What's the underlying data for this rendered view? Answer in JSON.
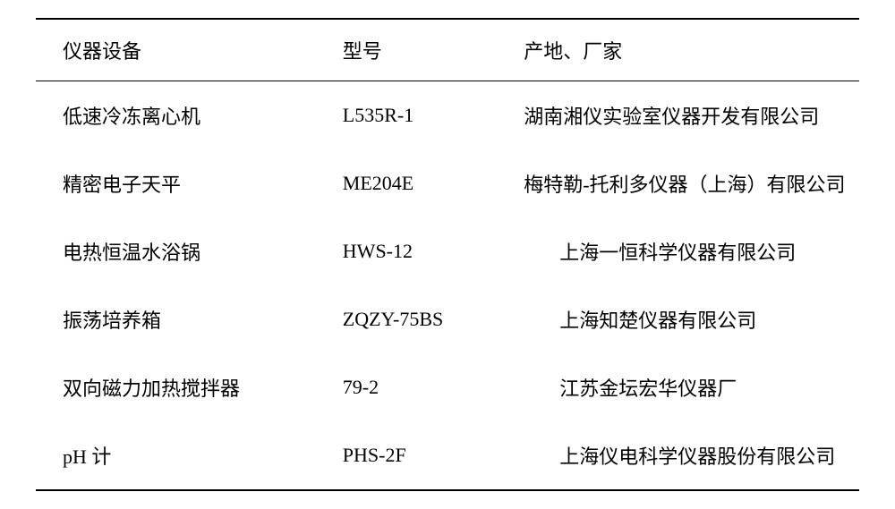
{
  "table": {
    "columns": [
      "仪器设备",
      "型号",
      "产地、厂家"
    ],
    "rows": [
      {
        "equipment": "低速冷冻离心机",
        "model": "L535R-1",
        "manufacturer": "湖南湘仪实验室仪器开发有限公司",
        "indent": false
      },
      {
        "equipment": "精密电子天平",
        "model": "ME204E",
        "manufacturer": "梅特勒-托利多仪器（上海）有限公司",
        "indent": false
      },
      {
        "equipment": "电热恒温水浴锅",
        "model": "HWS-12",
        "manufacturer": "上海一恒科学仪器有限公司",
        "indent": true
      },
      {
        "equipment": "振荡培养箱",
        "model": "ZQZY-75BS",
        "manufacturer": "上海知楚仪器有限公司",
        "indent": true
      },
      {
        "equipment": "双向磁力加热搅拌器",
        "model": "79-2",
        "manufacturer": "江苏金坛宏华仪器厂",
        "indent": true
      },
      {
        "equipment": "pH 计",
        "model": "PHS-2F",
        "manufacturer": "上海仪电科学仪器股份有限公司",
        "indent": true
      }
    ],
    "styling": {
      "border_color": "#000000",
      "top_border_width": 2,
      "header_bottom_border_width": 1.5,
      "bottom_border_width": 2,
      "background_color": "#ffffff",
      "text_color": "#000000",
      "font_size": 22,
      "font_family": "SimSun",
      "column_widths_percent": [
        34,
        22,
        44
      ]
    }
  }
}
